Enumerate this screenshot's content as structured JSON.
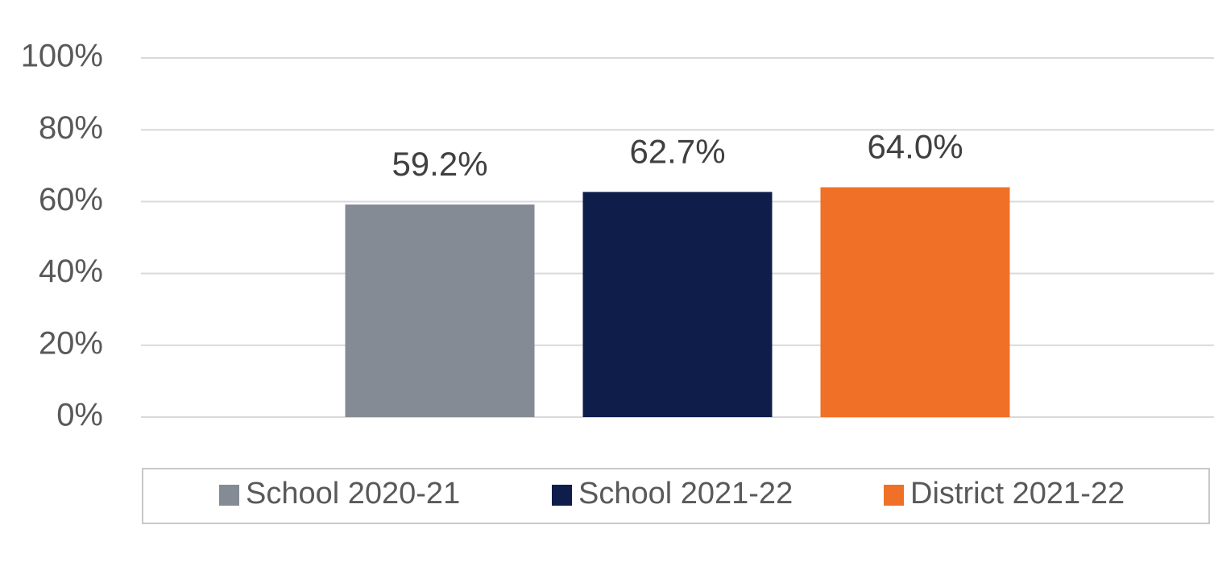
{
  "chart_data": {
    "type": "bar",
    "categories": [
      null
    ],
    "series": [
      {
        "name": "School 2020-21",
        "color": "#858b94",
        "values": [
          59.2
        ],
        "value_labels": [
          "59.2%"
        ]
      },
      {
        "name": "School 2021-22",
        "color": "#0f1d4a",
        "values": [
          62.7
        ],
        "value_labels": [
          "62.7%"
        ]
      },
      {
        "name": "District 2021-22",
        "color": "#f07027",
        "values": [
          64.0
        ],
        "value_labels": [
          "64.0%"
        ]
      }
    ],
    "ylim": [
      0,
      100
    ],
    "yticks": [
      {
        "value": 0,
        "label": "0%"
      },
      {
        "value": 20,
        "label": "20%"
      },
      {
        "value": 40,
        "label": "40%"
      },
      {
        "value": 60,
        "label": "60%"
      },
      {
        "value": 80,
        "label": "80%"
      },
      {
        "value": 100,
        "label": "100%"
      }
    ],
    "grid": true,
    "legend": "bottom"
  }
}
